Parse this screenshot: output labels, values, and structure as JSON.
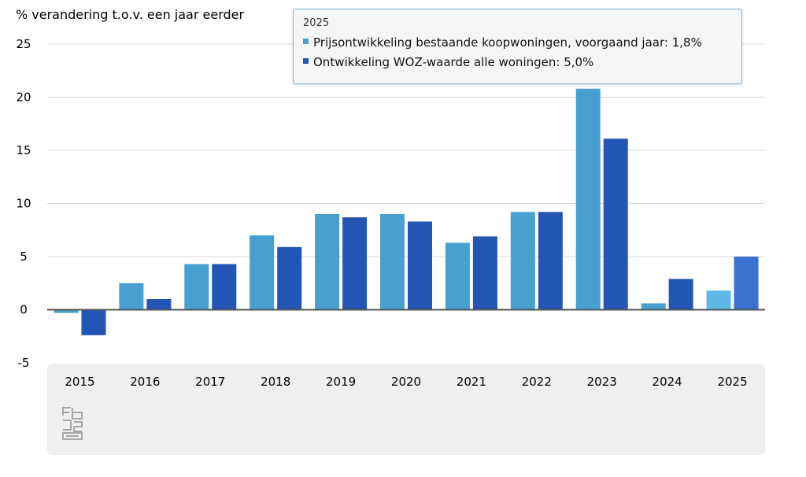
{
  "chart_data": {
    "type": "bar",
    "ylabel": "% verandering t.o.v. een jaar eerder",
    "ylim": [
      -5,
      25
    ],
    "yticks": [
      25,
      20,
      15,
      10,
      5,
      0,
      -5
    ],
    "grid": true,
    "categories": [
      "2015",
      "2016",
      "2017",
      "2018",
      "2019",
      "2020",
      "2021",
      "2022",
      "2023",
      "2024",
      "2025"
    ],
    "series": [
      {
        "name": "Prijsontwikkeling bestaande koopwoningen, voorgaand jaar",
        "color": "#48a0d0",
        "highlight_color": "#5fb8e6",
        "values": [
          -0.3,
          2.5,
          4.3,
          7.0,
          9.0,
          9.0,
          6.3,
          9.2,
          20.8,
          0.6,
          1.8
        ]
      },
      {
        "name": "Ontwikkeling WOZ-waarde alle woningen",
        "color": "#2356b4",
        "highlight_color": "#3a72d2",
        "values": [
          -2.4,
          1.0,
          4.3,
          5.9,
          8.7,
          8.3,
          6.9,
          9.2,
          16.1,
          2.9,
          5.0
        ]
      }
    ],
    "highlighted_category": "2025"
  },
  "tooltip": {
    "title": "2025",
    "rows": [
      {
        "text": "Prijsontwikkeling bestaande koopwoningen, voorgaand jaar: 1,8%",
        "color": "#48a0d0"
      },
      {
        "text": "Ontwikkeling WOZ-waarde alle woningen: 5,0%",
        "color": "#2356b4"
      }
    ]
  },
  "logo": {
    "icon": "cbs-logo-icon"
  }
}
